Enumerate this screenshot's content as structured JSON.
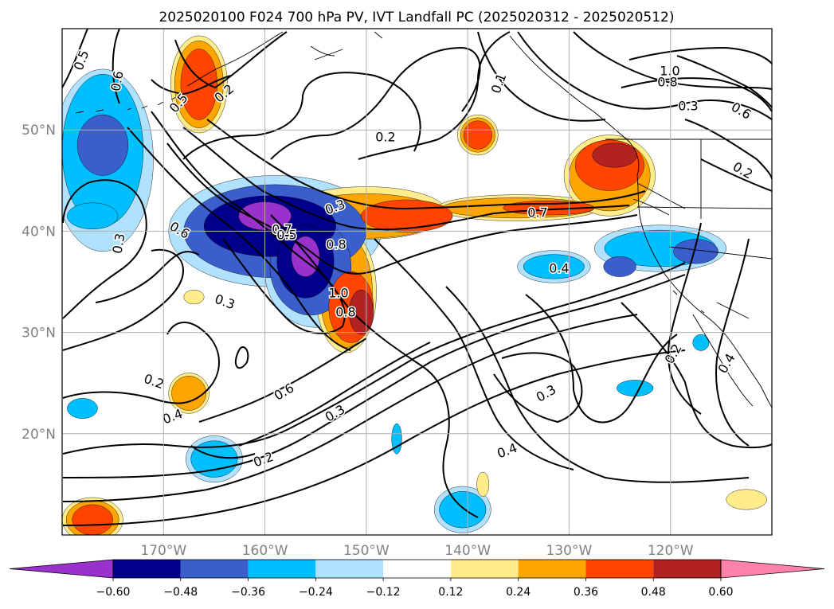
{
  "chart_data": {
    "type": "heatmap",
    "title": "2025020100 F024 700 hPa PV, IVT Landfall PC (2025020312 - 2025020512)",
    "map": {
      "lon_range": [
        -180,
        -110
      ],
      "lat_range": [
        10,
        60
      ],
      "x_ticks": [
        {
          "value": -170,
          "label": "170°W"
        },
        {
          "value": -160,
          "label": "160°W"
        },
        {
          "value": -150,
          "label": "150°W"
        },
        {
          "value": -140,
          "label": "140°W"
        },
        {
          "value": -130,
          "label": "130°W"
        },
        {
          "value": -120,
          "label": "120°W"
        }
      ],
      "y_ticks": [
        {
          "value": 20,
          "label": "20°N"
        },
        {
          "value": 30,
          "label": "30°N"
        },
        {
          "value": 40,
          "label": "40°N"
        },
        {
          "value": 50,
          "label": "50°N"
        }
      ],
      "grid": true
    },
    "colorbar": {
      "levels": [
        -0.6,
        -0.48,
        -0.36,
        -0.24,
        -0.12,
        0.12,
        0.24,
        0.36,
        0.48,
        0.6
      ],
      "tick_labels": [
        "−0.60",
        "−0.48",
        "−0.36",
        "−0.24",
        "−0.12",
        "0.12",
        "0.24",
        "0.36",
        "0.48",
        "0.60"
      ],
      "colors": [
        "#9932cc",
        "#00008b",
        "#3a5fcd",
        "#00bfff",
        "#b0e2ff",
        "#ffffff",
        "#ffec8b",
        "#ffa500",
        "#ff4500",
        "#b22222",
        "#ff82ab"
      ],
      "extend": "both"
    },
    "shading": [
      {
        "value": -0.66,
        "lon": -160,
        "lat": 41.5,
        "rlon": 2.6,
        "rlat": 1.4
      },
      {
        "value": -0.66,
        "lon": -156,
        "lat": 37.5,
        "rlon": 1.4,
        "rlat": 2.0
      },
      {
        "value": -0.54,
        "lon": -159.5,
        "lat": 40.5,
        "rlon": 6.5,
        "rlat": 3.0
      },
      {
        "value": -0.54,
        "lon": -156,
        "lat": 37,
        "rlon": 2.8,
        "rlat": 3.6
      },
      {
        "value": -0.42,
        "lon": -159,
        "lat": 40,
        "rlon": 9.0,
        "rlat": 4.6
      },
      {
        "value": -0.42,
        "lon": -155.5,
        "lat": 36.5,
        "rlon": 4.0,
        "rlat": 4.8
      },
      {
        "value": -0.42,
        "lon": -176,
        "lat": 48.5,
        "rlon": 2.5,
        "rlat": 3.0
      },
      {
        "value": -0.42,
        "lon": -117.5,
        "lat": 38,
        "rlon": 2.2,
        "rlat": 1.2
      },
      {
        "value": -0.42,
        "lon": -125,
        "lat": 36.5,
        "rlon": 1.6,
        "rlat": 1.0
      },
      {
        "value": -0.3,
        "lon": -176,
        "lat": 48,
        "rlon": 4.0,
        "rlat": 7.5
      },
      {
        "value": -0.3,
        "lon": -177,
        "lat": 41.5,
        "rlon": 2.5,
        "rlat": 1.3
      },
      {
        "value": -0.3,
        "lon": -131.5,
        "lat": 36.5,
        "rlon": 3.0,
        "rlat": 1.2
      },
      {
        "value": -0.3,
        "lon": -121,
        "lat": 38.3,
        "rlon": 5.5,
        "rlat": 1.8
      },
      {
        "value": -0.3,
        "lon": -165,
        "lat": 17.5,
        "rlon": 2.3,
        "rlat": 1.8
      },
      {
        "value": -0.3,
        "lon": -140.5,
        "lat": 12.5,
        "rlon": 2.3,
        "rlat": 1.8
      },
      {
        "value": -0.3,
        "lon": -123.5,
        "lat": 24.5,
        "rlon": 1.8,
        "rlat": 0.8
      },
      {
        "value": -0.3,
        "lon": -117,
        "lat": 29,
        "rlon": 0.8,
        "rlat": 0.8
      },
      {
        "value": -0.3,
        "lon": -178,
        "lat": 22.5,
        "rlon": 1.5,
        "rlat": 1.0
      },
      {
        "value": -0.3,
        "lon": -147,
        "lat": 19.5,
        "rlon": 0.5,
        "rlat": 1.5
      },
      {
        "value": -0.18,
        "lon": -159,
        "lat": 40,
        "rlon": 10.5,
        "rlat": 5.5
      },
      {
        "value": -0.18,
        "lon": -155,
        "lat": 36,
        "rlon": 5.0,
        "rlat": 5.5
      },
      {
        "value": -0.18,
        "lon": -176,
        "lat": 47,
        "rlon": 5.0,
        "rlat": 9.0
      },
      {
        "value": -0.18,
        "lon": -121,
        "lat": 38.3,
        "rlon": 6.5,
        "rlat": 2.3
      },
      {
        "value": -0.18,
        "lon": -131.5,
        "lat": 36.5,
        "rlon": 3.6,
        "rlat": 1.6
      },
      {
        "value": -0.18,
        "lon": -165,
        "lat": 17.5,
        "rlon": 2.8,
        "rlat": 2.3
      },
      {
        "value": -0.18,
        "lon": -140.5,
        "lat": 12.5,
        "rlon": 2.8,
        "rlat": 2.3
      },
      {
        "value": 0.18,
        "lon": -166.5,
        "lat": 54.5,
        "rlon": 2.8,
        "rlat": 4.8
      },
      {
        "value": 0.18,
        "lon": -152,
        "lat": 34,
        "rlon": 3.0,
        "rlat": 6.0
      },
      {
        "value": 0.18,
        "lon": -150,
        "lat": 41.8,
        "rlon": 8.0,
        "rlat": 2.6
      },
      {
        "value": 0.18,
        "lon": -135,
        "lat": 42.3,
        "rlon": 8.0,
        "rlat": 1.3
      },
      {
        "value": 0.18,
        "lon": -126,
        "lat": 45.5,
        "rlon": 4.5,
        "rlat": 4.0
      },
      {
        "value": 0.18,
        "lon": -139,
        "lat": 49.5,
        "rlon": 2.0,
        "rlat": 2.0
      },
      {
        "value": 0.18,
        "lon": -167.5,
        "lat": 24,
        "rlon": 2.0,
        "rlat": 2.0
      },
      {
        "value": 0.18,
        "lon": -177,
        "lat": 11.5,
        "rlon": 3.0,
        "rlat": 2.2
      },
      {
        "value": 0.18,
        "lon": -112.5,
        "lat": 13.5,
        "rlon": 2.0,
        "rlat": 1.0
      },
      {
        "value": 0.18,
        "lon": -138.5,
        "lat": 15,
        "rlon": 0.6,
        "rlat": 1.2
      },
      {
        "value": 0.18,
        "lon": -167,
        "lat": 33.5,
        "rlon": 1.0,
        "rlat": 0.7
      },
      {
        "value": 0.3,
        "lon": -166.5,
        "lat": 54.5,
        "rlon": 2.4,
        "rlat": 4.3
      },
      {
        "value": 0.3,
        "lon": -152,
        "lat": 34,
        "rlon": 2.6,
        "rlat": 5.5
      },
      {
        "value": 0.3,
        "lon": -150,
        "lat": 41.5,
        "rlon": 7.5,
        "rlat": 2.2
      },
      {
        "value": 0.3,
        "lon": -135,
        "lat": 42.3,
        "rlon": 7.5,
        "rlat": 1.0
      },
      {
        "value": 0.3,
        "lon": -126,
        "lat": 45.5,
        "rlon": 4.0,
        "rlat": 3.5
      },
      {
        "value": 0.3,
        "lon": -139,
        "lat": 49.5,
        "rlon": 1.7,
        "rlat": 1.7
      },
      {
        "value": 0.3,
        "lon": -167.5,
        "lat": 24,
        "rlon": 1.7,
        "rlat": 1.7
      },
      {
        "value": 0.3,
        "lon": -177,
        "lat": 11.5,
        "rlon": 2.6,
        "rlat": 1.9
      },
      {
        "value": 0.42,
        "lon": -166.5,
        "lat": 54.5,
        "rlon": 1.8,
        "rlat": 3.5
      },
      {
        "value": 0.42,
        "lon": -151.5,
        "lat": 32.5,
        "rlon": 2.2,
        "rlat": 3.5
      },
      {
        "value": 0.42,
        "lon": -146,
        "lat": 41.5,
        "rlon": 4.5,
        "rlat": 1.6
      },
      {
        "value": 0.42,
        "lon": -132,
        "lat": 42.3,
        "rlon": 4.5,
        "rlat": 0.7
      },
      {
        "value": 0.42,
        "lon": -126,
        "lat": 46.5,
        "rlon": 3.4,
        "rlat": 2.5
      },
      {
        "value": 0.42,
        "lon": -139,
        "lat": 49.5,
        "rlon": 1.4,
        "rlat": 1.4
      },
      {
        "value": 0.42,
        "lon": -177,
        "lat": 11.5,
        "rlon": 2.0,
        "rlat": 1.5
      },
      {
        "value": 0.54,
        "lon": -150.5,
        "lat": 32,
        "rlon": 1.2,
        "rlat": 2.2
      },
      {
        "value": 0.54,
        "lon": -125.5,
        "lat": 47.5,
        "rlon": 2.2,
        "rlat": 1.2
      }
    ],
    "contour_labels": [
      "0.5",
      "0.6",
      "0.5",
      "0.2",
      "0.2",
      "0.1",
      "1.0",
      "0.8",
      "0.3",
      "0.6",
      "0.2",
      "0.3",
      "0.6",
      "0.7",
      "0.8",
      "0.4",
      "0.5",
      "0.7",
      "0.3",
      "1.0",
      "0.8",
      "0.3",
      "0.2",
      "0.4",
      "0.6",
      "0.3",
      "0.2",
      "0.3",
      "0.4",
      "0.2",
      "0.4"
    ]
  }
}
